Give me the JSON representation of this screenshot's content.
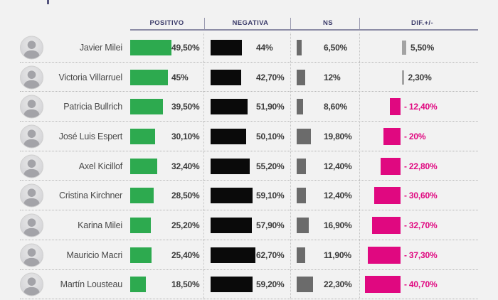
{
  "header": {
    "columns": [
      "POSITIVO",
      "NEGATIVA",
      "NS",
      "DIF.+/-"
    ]
  },
  "colors": {
    "positive_bar": "#2daa4f",
    "negative_bar": "#0a0a0a",
    "ns_bar": "#6b6b6b",
    "dif_positive_bar": "#a3a3a3",
    "dif_negative": "#e00880",
    "header_text": "#3d3d6b"
  },
  "rows": [
    {
      "name": "Javier Milei",
      "pos": 49.5,
      "pos_label": "49,50%",
      "neg": 44.0,
      "neg_label": "44%",
      "ns": 6.5,
      "ns_label": "6,50%",
      "dif": 5.5,
      "dif_label": "5,50%"
    },
    {
      "name": "Victoria Villarruel",
      "pos": 45.0,
      "pos_label": "45%",
      "neg": 42.7,
      "neg_label": "42,70%",
      "ns": 12.0,
      "ns_label": "12%",
      "dif": 2.3,
      "dif_label": "2,30%"
    },
    {
      "name": "Patricia Bullrich",
      "pos": 39.5,
      "pos_label": "39,50%",
      "neg": 51.9,
      "neg_label": "51,90%",
      "ns": 8.6,
      "ns_label": "8,60%",
      "dif": -12.4,
      "dif_label": "- 12,40%"
    },
    {
      "name": "José Luis Espert",
      "pos": 30.1,
      "pos_label": "30,10%",
      "neg": 50.1,
      "neg_label": "50,10%",
      "ns": 19.8,
      "ns_label": "19,80%",
      "dif": -20.0,
      "dif_label": "- 20%"
    },
    {
      "name": "Axel Kicillof",
      "pos": 32.4,
      "pos_label": "32,40%",
      "neg": 55.2,
      "neg_label": "55,20%",
      "ns": 12.4,
      "ns_label": "12,40%",
      "dif": -22.8,
      "dif_label": "- 22,80%"
    },
    {
      "name": "Cristina Kirchner",
      "pos": 28.5,
      "pos_label": "28,50%",
      "neg": 59.1,
      "neg_label": "59,10%",
      "ns": 12.4,
      "ns_label": "12,40%",
      "dif": -30.6,
      "dif_label": "- 30,60%"
    },
    {
      "name": "Karina Milei",
      "pos": 25.2,
      "pos_label": "25,20%",
      "neg": 57.9,
      "neg_label": "57,90%",
      "ns": 16.9,
      "ns_label": "16,90%",
      "dif": -32.7,
      "dif_label": "- 32,70%"
    },
    {
      "name": "Mauricio Macri",
      "pos": 25.4,
      "pos_label": "25,40%",
      "neg": 62.7,
      "neg_label": "62,70%",
      "ns": 11.9,
      "ns_label": "11,90%",
      "dif": -37.3,
      "dif_label": "- 37,30%"
    },
    {
      "name": "Martín Lousteau",
      "pos": 18.5,
      "pos_label": "18,50%",
      "neg": 59.2,
      "neg_label": "59,20%",
      "ns": 22.3,
      "ns_label": "22,30%",
      "dif": -40.7,
      "dif_label": "- 40,70%"
    }
  ],
  "chart_data": {
    "type": "bar",
    "title": "",
    "categories": [
      "Javier Milei",
      "Victoria Villarruel",
      "Patricia Bullrich",
      "José Luis Espert",
      "Axel Kicillof",
      "Cristina Kirchner",
      "Karina Milei",
      "Mauricio Macri",
      "Martín Lousteau"
    ],
    "series": [
      {
        "name": "POSITIVO",
        "values": [
          49.5,
          45.0,
          39.5,
          30.1,
          32.4,
          28.5,
          25.2,
          25.4,
          18.5
        ],
        "color": "#2daa4f"
      },
      {
        "name": "NEGATIVA",
        "values": [
          44.0,
          42.7,
          51.9,
          50.1,
          55.2,
          59.1,
          57.9,
          62.7,
          59.2
        ],
        "color": "#0a0a0a"
      },
      {
        "name": "NS",
        "values": [
          6.5,
          12.0,
          8.6,
          19.8,
          12.4,
          12.4,
          16.9,
          11.9,
          22.3
        ],
        "color": "#6b6b6b"
      },
      {
        "name": "DIF.+/-",
        "values": [
          5.5,
          2.3,
          -12.4,
          -20.0,
          -22.8,
          -30.6,
          -32.7,
          -37.3,
          -40.7
        ],
        "color": "#e00880"
      }
    ],
    "layout": {
      "orientation": "horizontal",
      "value_labels": true,
      "grid": false,
      "legend_position": "top-column-headers"
    }
  }
}
